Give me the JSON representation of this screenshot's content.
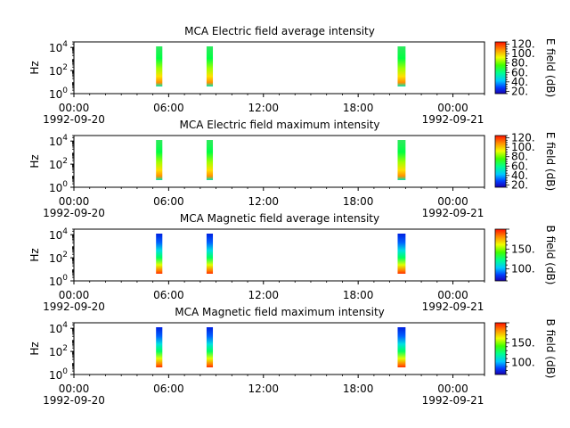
{
  "chart_data": [
    {
      "type": "heatmap",
      "title": "MCA  Electric field average intensity",
      "ylabel": "Hz",
      "yscale": "log",
      "ylim": [
        1,
        30000
      ],
      "y_ticks": [
        {
          "base": "10",
          "exp": "0"
        },
        {
          "base": "10",
          "exp": "2"
        },
        {
          "base": "10",
          "exp": "4"
        }
      ],
      "x_ticks": [
        "00:00",
        "06:00",
        "12:00",
        "18:00",
        "00:00"
      ],
      "x_start_date": "1992-09-20",
      "x_end_date": "1992-09-21",
      "xlim_hours": [
        0,
        26
      ],
      "colorbar": {
        "label": "E field (dB)",
        "range": [
          15,
          125
        ],
        "ticks": [
          "20.",
          "40.",
          "60.",
          "80.",
          "100.",
          "120."
        ]
      },
      "segments": [
        {
          "start_hour": 5.2,
          "end_hour": 5.6
        },
        {
          "start_hour": 8.4,
          "end_hour": 8.8
        },
        {
          "start_hour": 20.5,
          "end_hour": 21.0
        }
      ]
    },
    {
      "type": "heatmap",
      "title": "MCA  Electric field maximum intensity",
      "ylabel": "Hz",
      "yscale": "log",
      "ylim": [
        1,
        30000
      ],
      "y_ticks": [
        {
          "base": "10",
          "exp": "0"
        },
        {
          "base": "10",
          "exp": "2"
        },
        {
          "base": "10",
          "exp": "4"
        }
      ],
      "x_ticks": [
        "00:00",
        "06:00",
        "12:00",
        "18:00",
        "00:00"
      ],
      "x_start_date": "1992-09-20",
      "x_end_date": "1992-09-21",
      "xlim_hours": [
        0,
        26
      ],
      "colorbar": {
        "label": "E field (dB)",
        "range": [
          15,
          125
        ],
        "ticks": [
          "20.",
          "40.",
          "60.",
          "80.",
          "100.",
          "120."
        ]
      },
      "segments": [
        {
          "start_hour": 5.2,
          "end_hour": 5.6
        },
        {
          "start_hour": 8.4,
          "end_hour": 8.8
        },
        {
          "start_hour": 20.5,
          "end_hour": 21.0
        }
      ]
    },
    {
      "type": "heatmap",
      "title": "MCA  Magnetic field average intensity",
      "ylabel": "Hz",
      "yscale": "log",
      "ylim": [
        1,
        30000
      ],
      "y_ticks": [
        {
          "base": "10",
          "exp": "0"
        },
        {
          "base": "10",
          "exp": "2"
        },
        {
          "base": "10",
          "exp": "4"
        }
      ],
      "x_ticks": [
        "00:00",
        "06:00",
        "12:00",
        "18:00",
        "00:00"
      ],
      "x_start_date": "1992-09-20",
      "x_end_date": "1992-09-21",
      "xlim_hours": [
        0,
        26
      ],
      "colorbar": {
        "label": "B field (dB)",
        "range": [
          70,
          200
        ],
        "ticks": [
          "100.",
          "150."
        ]
      },
      "segments": [
        {
          "start_hour": 5.2,
          "end_hour": 5.6
        },
        {
          "start_hour": 8.4,
          "end_hour": 8.8
        },
        {
          "start_hour": 20.5,
          "end_hour": 21.0
        }
      ]
    },
    {
      "type": "heatmap",
      "title": "MCA  Magnetic field maximum intensity",
      "ylabel": "Hz",
      "yscale": "log",
      "ylim": [
        1,
        30000
      ],
      "y_ticks": [
        {
          "base": "10",
          "exp": "0"
        },
        {
          "base": "10",
          "exp": "2"
        },
        {
          "base": "10",
          "exp": "4"
        }
      ],
      "x_ticks": [
        "00:00",
        "06:00",
        "12:00",
        "18:00",
        "00:00"
      ],
      "x_start_date": "1992-09-20",
      "x_end_date": "1992-09-21",
      "xlim_hours": [
        0,
        26
      ],
      "colorbar": {
        "label": "B field (dB)",
        "range": [
          70,
          200
        ],
        "ticks": [
          "100.",
          "150."
        ]
      },
      "segments": [
        {
          "start_hour": 5.2,
          "end_hour": 5.6
        },
        {
          "start_hour": 8.4,
          "end_hour": 8.8
        },
        {
          "start_hour": 20.5,
          "end_hour": 21.0
        }
      ]
    }
  ]
}
